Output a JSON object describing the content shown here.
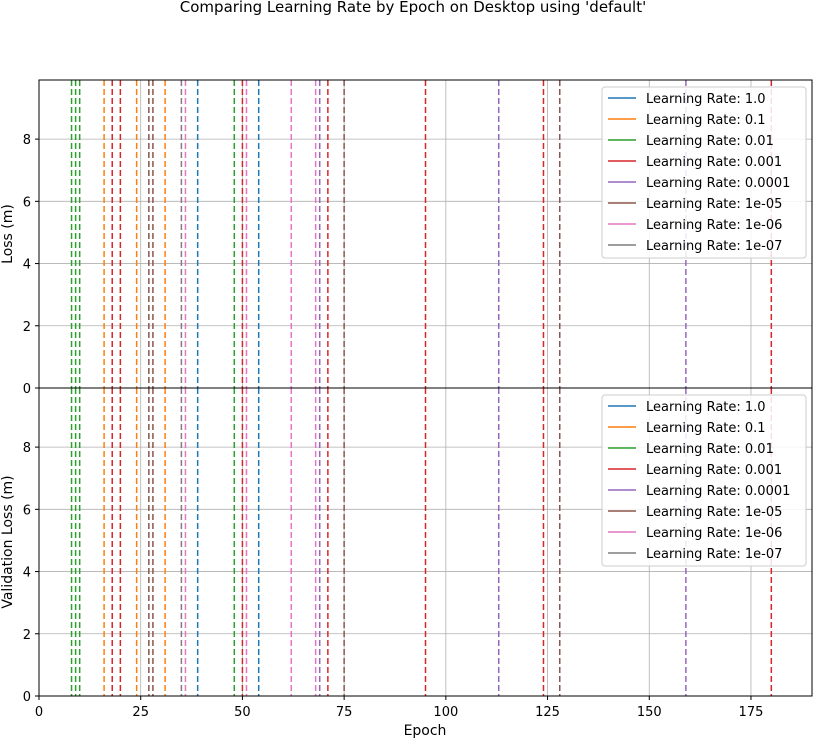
{
  "colors": {
    "C0": "#1f77b4",
    "C1": "#ff7f0e",
    "C2": "#2ca02c",
    "C3": "#d62728",
    "C4": "#9467bd",
    "C5": "#8c564b",
    "C6": "#e377c2",
    "C7": "#7f7f7f"
  },
  "chart_data": {
    "type": "line",
    "title": "Comparing Learning Rate by Epoch on Desktop using 'default'",
    "xlabel": "Epoch",
    "xlim": [
      0,
      190
    ],
    "x_ticks": [
      "0",
      "25",
      "50",
      "75",
      "100",
      "125",
      "150",
      "175"
    ],
    "y_ticks": [
      "0",
      "2",
      "4",
      "6",
      "8"
    ],
    "grid": true,
    "legend_placement": "top-right",
    "legend": [
      {
        "label": "Learning Rate: 1.0",
        "color": "C0"
      },
      {
        "label": "Learning Rate: 0.1",
        "color": "C1"
      },
      {
        "label": "Learning Rate: 0.01",
        "color": "C2"
      },
      {
        "label": "Learning Rate: 0.001",
        "color": "C3"
      },
      {
        "label": "Learning Rate: 0.0001",
        "color": "C4"
      },
      {
        "label": "Learning Rate: 1e-05",
        "color": "C5"
      },
      {
        "label": "Learning Rate: 1e-06",
        "color": "C6"
      },
      {
        "label": "Learning Rate: 1e-07",
        "color": "C7"
      }
    ],
    "subplots": [
      {
        "ylabel": "Loss (m)",
        "ylim": [
          0,
          9.9
        ]
      },
      {
        "ylabel": "Validation Loss (m)",
        "ylim": [
          0,
          9.9
        ]
      }
    ],
    "vlines": [
      {
        "x": 8,
        "color": "C2"
      },
      {
        "x": 9,
        "color": "C2"
      },
      {
        "x": 10,
        "color": "C2"
      },
      {
        "x": 16,
        "color": "C1"
      },
      {
        "x": 18,
        "color": "C3"
      },
      {
        "x": 20,
        "color": "C3"
      },
      {
        "x": 24,
        "color": "C1"
      },
      {
        "x": 27,
        "color": "C5"
      },
      {
        "x": 28,
        "color": "C5"
      },
      {
        "x": 31,
        "color": "C1"
      },
      {
        "x": 35,
        "color": "C7"
      },
      {
        "x": 36,
        "color": "C6"
      },
      {
        "x": 39,
        "color": "C0"
      },
      {
        "x": 48,
        "color": "C2"
      },
      {
        "x": 50,
        "color": "C3"
      },
      {
        "x": 51,
        "color": "C6"
      },
      {
        "x": 54,
        "color": "C0"
      },
      {
        "x": 62,
        "color": "C6"
      },
      {
        "x": 68,
        "color": "C6"
      },
      {
        "x": 69,
        "color": "C4"
      },
      {
        "x": 71,
        "color": "C3"
      },
      {
        "x": 75,
        "color": "C5"
      },
      {
        "x": 95,
        "color": "C3"
      },
      {
        "x": 113,
        "color": "C4"
      },
      {
        "x": 124,
        "color": "C3"
      },
      {
        "x": 128,
        "color": "C5"
      },
      {
        "x": 159,
        "color": "C4"
      },
      {
        "x": 180,
        "color": "C3"
      }
    ]
  }
}
